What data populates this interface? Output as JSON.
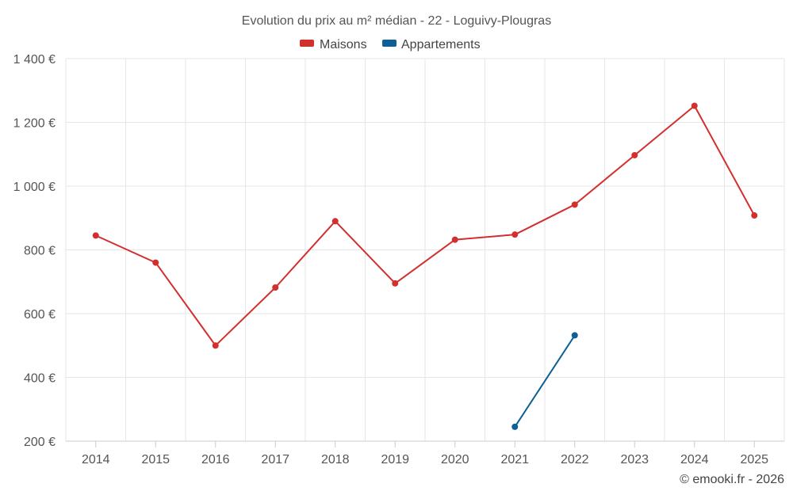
{
  "chart_data": {
    "type": "line",
    "title": "Evolution du prix au m² médian - 22 - Loguivy-Plougras",
    "categories": [
      "2014",
      "2015",
      "2016",
      "2017",
      "2018",
      "2019",
      "2020",
      "2021",
      "2022",
      "2023",
      "2024",
      "2025"
    ],
    "series": [
      {
        "name": "Maisons",
        "color": "#d32f2f",
        "values": [
          845,
          760,
          500,
          682,
          890,
          695,
          832,
          848,
          942,
          1097,
          1252,
          908
        ]
      },
      {
        "name": "Appartements",
        "color": "#0d5f96",
        "values": [
          null,
          null,
          null,
          null,
          null,
          null,
          null,
          245,
          532,
          null,
          null,
          null
        ]
      }
    ],
    "ylim": [
      200,
      1400
    ],
    "yticks": [
      200,
      400,
      600,
      800,
      1000,
      1200,
      1400
    ],
    "ytick_labels": [
      "200 €",
      "400 €",
      "600 €",
      "800 €",
      "1 000 €",
      "1 200 €",
      "1 400 €"
    ],
    "grid": true,
    "legend_position": "top-center",
    "credit": "© emooki.fr - 2026"
  }
}
